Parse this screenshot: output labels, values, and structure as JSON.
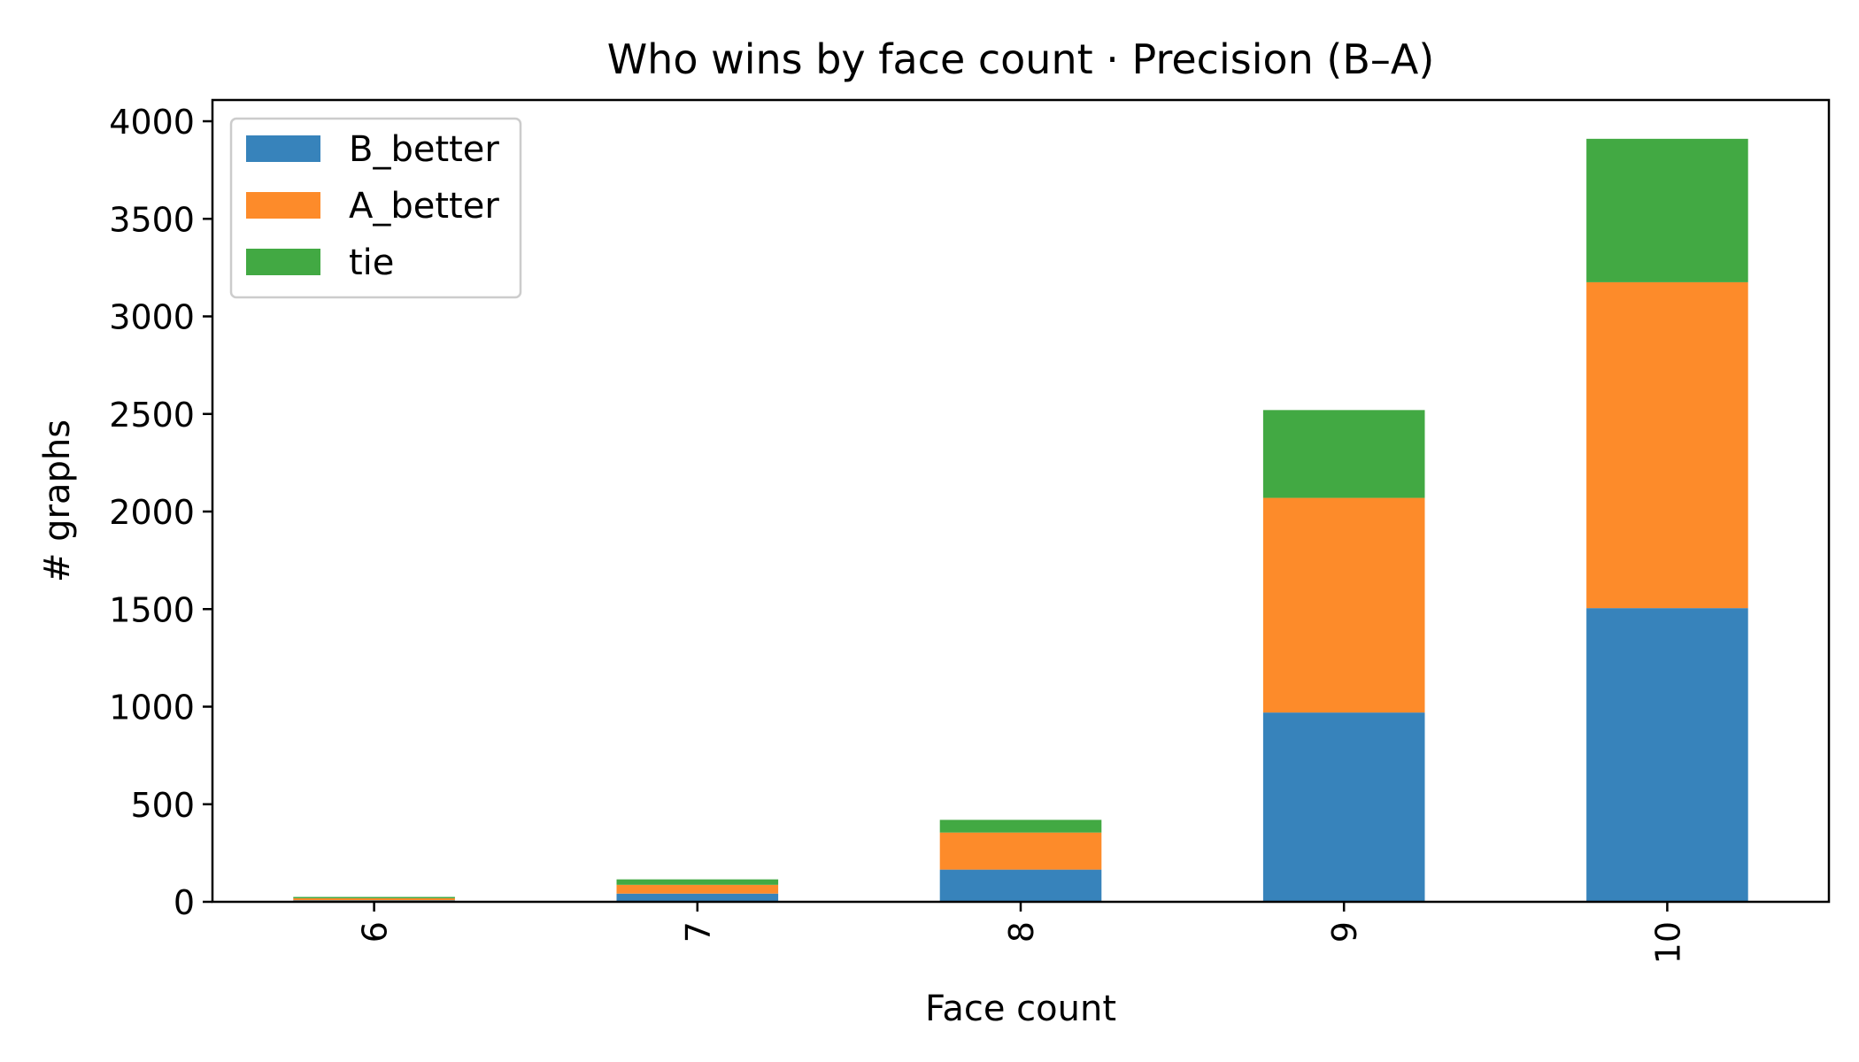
{
  "chart_data": {
    "type": "bar",
    "stacked": true,
    "title": "Who wins by face count · Precision  (B–A)",
    "xlabel": "Face count",
    "ylabel": "# graphs",
    "categories": [
      "6",
      "7",
      "8",
      "9",
      "10"
    ],
    "series": [
      {
        "name": "B_better",
        "color": "#3783bb",
        "values": [
          8,
          42,
          165,
          970,
          1505
        ]
      },
      {
        "name": "A_better",
        "color": "#fd8b2a",
        "values": [
          10,
          45,
          190,
          1100,
          1670
        ]
      },
      {
        "name": "tie",
        "color": "#42a943",
        "values": [
          7,
          28,
          65,
          450,
          735
        ]
      }
    ],
    "ylim": [
      0,
      4100
    ],
    "yticks": [
      0,
      500,
      1000,
      1500,
      2000,
      2500,
      3000,
      3500,
      4000
    ],
    "ytick_labels": [
      "0",
      "500",
      "1000",
      "1500",
      "2000",
      "2500",
      "3000",
      "3500",
      "4000"
    ],
    "xtick_rotation": "vertical",
    "grid": false,
    "legend_position": "top-left"
  }
}
